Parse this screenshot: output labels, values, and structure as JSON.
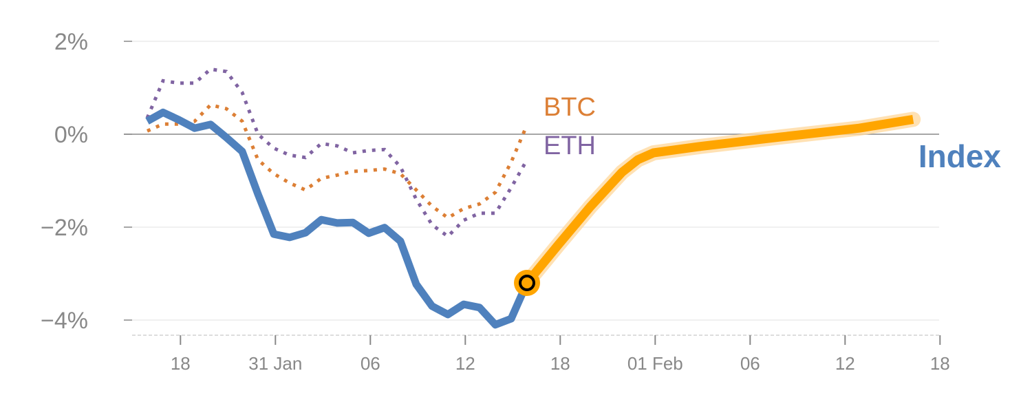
{
  "chart_data": {
    "type": "line",
    "title": "",
    "xlabel": "",
    "ylabel": "",
    "ylim": [
      -4.3,
      2
    ],
    "xlim": [
      -1.5,
      50
    ],
    "grid": true,
    "y_ticks": [
      {
        "value": 2,
        "label": "2%"
      },
      {
        "value": 0,
        "label": "0%"
      },
      {
        "value": -2,
        "label": "−2%"
      },
      {
        "value": -4,
        "label": "−4%"
      }
    ],
    "x_ticks": [
      {
        "value": 2.1,
        "label": "18"
      },
      {
        "value": 8.1,
        "label": "31 Jan"
      },
      {
        "value": 14.1,
        "label": "06"
      },
      {
        "value": 20.1,
        "label": "12"
      },
      {
        "value": 26.1,
        "label": "18"
      },
      {
        "value": 32.1,
        "label": "01 Feb"
      },
      {
        "value": 38.1,
        "label": "06"
      },
      {
        "value": 44.1,
        "label": "12"
      },
      {
        "value": 50.1,
        "label": "18"
      }
    ],
    "series": [
      {
        "name": "BTC",
        "color": "#dc7f35",
        "style": "dotted",
        "x": [
          0,
          1,
          2,
          3,
          4,
          5,
          6,
          7,
          8,
          9,
          10,
          11,
          12,
          13,
          14,
          15,
          16,
          17,
          18,
          19,
          20,
          21,
          22,
          23,
          24
        ],
        "values": [
          0.07,
          0.22,
          0.22,
          0.28,
          0.63,
          0.55,
          0.28,
          -0.55,
          -0.85,
          -1.05,
          -1.2,
          -0.95,
          -0.88,
          -0.8,
          -0.78,
          -0.75,
          -0.85,
          -1.2,
          -1.55,
          -1.8,
          -1.6,
          -1.5,
          -1.25,
          -0.6,
          0.2
        ]
      },
      {
        "name": "ETH",
        "color": "#8064a2",
        "style": "dotted",
        "x": [
          0,
          1,
          2,
          3,
          4,
          5,
          6,
          7,
          8,
          9,
          10,
          11,
          12,
          13,
          14,
          15,
          16,
          17,
          18,
          19,
          20,
          21,
          22,
          23,
          24
        ],
        "values": [
          0.35,
          1.15,
          1.1,
          1.1,
          1.4,
          1.35,
          0.9,
          0.0,
          -0.3,
          -0.45,
          -0.5,
          -0.2,
          -0.25,
          -0.4,
          -0.35,
          -0.33,
          -0.7,
          -1.4,
          -1.95,
          -2.2,
          -1.85,
          -1.7,
          -1.7,
          -1.15,
          -0.55
        ]
      },
      {
        "name": "Index",
        "color": "#4f81bd",
        "style": "solid",
        "x": [
          0,
          1,
          2,
          3,
          4,
          5,
          6,
          7,
          8,
          9,
          10,
          11,
          12,
          13,
          14,
          15,
          16,
          17,
          18,
          19,
          20,
          21,
          22,
          23,
          24
        ],
        "values": [
          0.28,
          0.47,
          0.31,
          0.13,
          0.21,
          -0.07,
          -0.37,
          -1.29,
          -2.15,
          -2.22,
          -2.12,
          -1.84,
          -1.91,
          -1.9,
          -2.13,
          -2.01,
          -2.3,
          -3.23,
          -3.7,
          -3.88,
          -3.66,
          -3.73,
          -4.1,
          -3.97,
          -3.2
        ]
      },
      {
        "name": "Index projection",
        "color": "#ffa500",
        "style": "thick",
        "x": [
          24,
          26,
          28,
          30,
          31,
          32,
          35,
          40,
          45,
          48.4
        ],
        "values": [
          -3.2,
          -2.37,
          -1.56,
          -0.82,
          -0.55,
          -0.4,
          -0.26,
          -0.06,
          0.13,
          0.32
        ]
      }
    ],
    "marker": {
      "x": 24,
      "value": -3.2
    },
    "labels": {
      "btc": "BTC",
      "eth": "ETH",
      "index": "Index"
    }
  }
}
